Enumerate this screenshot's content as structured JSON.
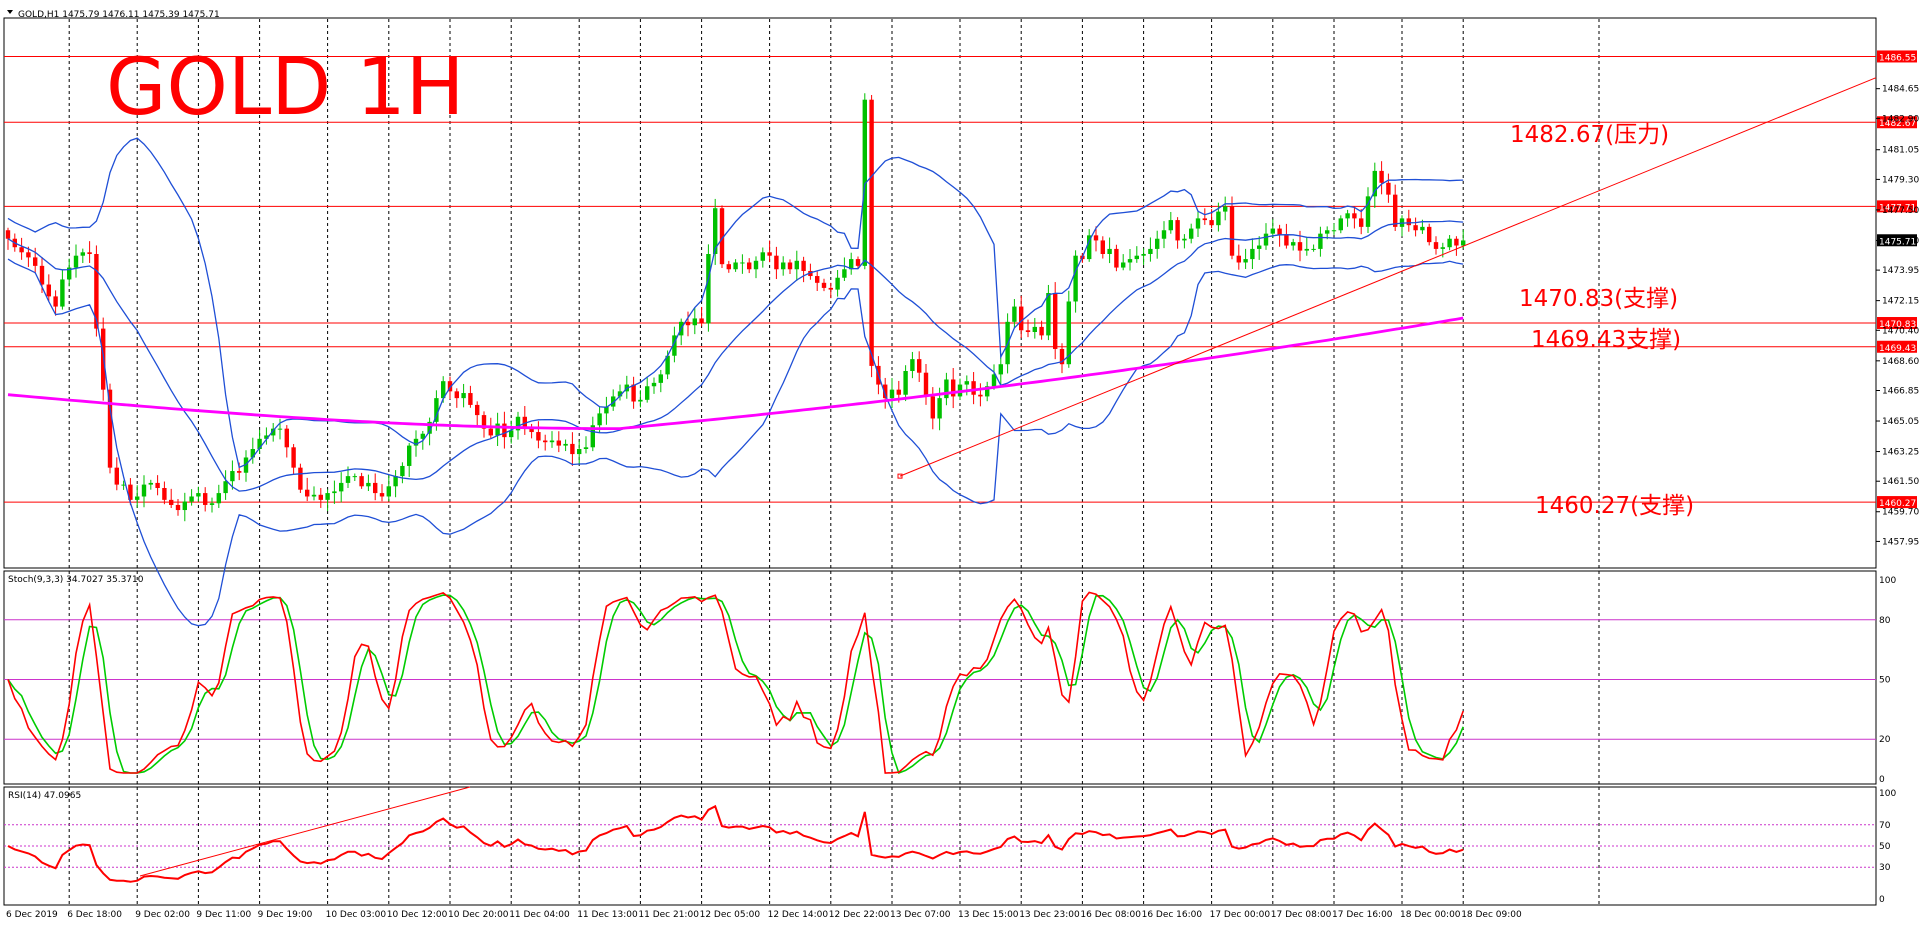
{
  "header": {
    "symbol_line": "GOLD,H1  1475.79 1476.11 1475.39 1475.71",
    "stoch_line": "Stoch(9,3,3) 34.7027 35.3710",
    "rsi_line": "RSI(14) 47.0965"
  },
  "title": "GOLD 1H",
  "annotations": {
    "resistance": "1482.67(压力)",
    "support1": "1470.83(支撑)",
    "support2": "1469.43支撑)",
    "support3": "1460.27(支撑)"
  },
  "price_ticks": [
    "1484.65",
    "1482.90",
    "1481.05",
    "1479.30",
    "1477.50",
    "1475.70",
    "1473.95",
    "1472.15",
    "1470.40",
    "1468.60",
    "1466.85",
    "1465.05",
    "1463.25",
    "1461.50",
    "1459.70",
    "1457.95"
  ],
  "level_labels": [
    "1486.55",
    "1482.67",
    "1477.71",
    "1470.83",
    "1469.43",
    "1460.27"
  ],
  "current_price": "1475.71",
  "stoch_ticks": [
    "100",
    "80",
    "50",
    "20",
    "0"
  ],
  "rsi_ticks": [
    "100",
    "70",
    "50",
    "30",
    "0"
  ],
  "time_labels": [
    "6 Dec 2019",
    "6 Dec 18:00",
    "9 Dec 02:00",
    "9 Dec 11:00",
    "9 Dec 19:00",
    "10 Dec 03:00",
    "10 Dec 12:00",
    "10 Dec 20:00",
    "11 Dec 04:00",
    "11 Dec 13:00",
    "11 Dec 21:00",
    "12 Dec 05:00",
    "12 Dec 14:00",
    "12 Dec 22:00",
    "13 Dec 07:00",
    "13 Dec 15:00",
    "13 Dec 23:00",
    "16 Dec 08:00",
    "16 Dec 16:00",
    "17 Dec 00:00",
    "17 Dec 08:00",
    "17 Dec 16:00",
    "18 Dec 00:00",
    "18 Dec 09:00"
  ],
  "colors": {
    "bull": "#00c000",
    "bear": "#ff0000",
    "bollinger": "#1f4fd6",
    "ma": "#ff00ff",
    "level": "#ff0000",
    "stoch_main": "#ff0000",
    "stoch_signal": "#00cc00",
    "rsi": "#ff0000",
    "title": "#ff0000"
  },
  "chart_data": {
    "type": "candlestick",
    "symbol": "GOLD",
    "timeframe": "H1",
    "ylim": [
      1456.5,
      1488.7
    ],
    "horizontal_levels": [
      1486.55,
      1482.67,
      1477.71,
      1470.83,
      1469.43,
      1460.27
    ],
    "trendlines": [
      {
        "from": [
          47,
          1461.8
        ],
        "to": [
          84,
          1484.3
        ]
      }
    ],
    "closes": [
      1475.8,
      1475.3,
      1475.0,
      1474.7,
      1474.2,
      1473.1,
      1472.4,
      1471.8,
      1473.4,
      1474.1,
      1474.8,
      1475.0,
      1474.9,
      1470.5,
      1466.9,
      1462.3,
      1461.3,
      1461.3,
      1460.4,
      1460.6,
      1461.3,
      1461.4,
      1461.1,
      1460.4,
      1460.1,
      1459.8,
      1460.3,
      1460.6,
      1460.8,
      1460.1,
      1460.2,
      1460.8,
      1461.5,
      1462.1,
      1462.0,
      1462.9,
      1463.4,
      1464.0,
      1464.2,
      1464.6,
      1464.6,
      1463.5,
      1462.3,
      1461.0,
      1460.6,
      1460.7,
      1460.4,
      1460.8,
      1460.9,
      1461.4,
      1461.8,
      1461.8,
      1461.2,
      1461.4,
      1460.8,
      1460.6,
      1461.2,
      1461.8,
      1462.4,
      1463.6,
      1464.0,
      1464.3,
      1465.0,
      1466.4,
      1467.4,
      1466.8,
      1466.4,
      1466.7,
      1466.0,
      1465.4,
      1464.6,
      1464.2,
      1464.9,
      1464.1,
      1464.5,
      1465.3,
      1464.6,
      1464.4,
      1463.9,
      1463.8,
      1463.9,
      1463.6,
      1463.7,
      1463.1,
      1463.4,
      1463.5,
      1464.8,
      1465.5,
      1465.9,
      1466.5,
      1466.8,
      1467.2,
      1466.2,
      1466.3,
      1467.1,
      1467.3,
      1467.8,
      1468.9,
      1470.1,
      1470.9,
      1470.7,
      1471.1,
      1470.8,
      1474.9,
      1477.6,
      1474.3,
      1474.0,
      1474.4,
      1474.4,
      1474.0,
      1474.5,
      1475.0,
      1474.8,
      1474.0,
      1474.4,
      1474.0,
      1474.5,
      1473.9,
      1473.6,
      1473.2,
      1472.9,
      1472.8,
      1473.5,
      1474.0,
      1474.6,
      1474.2,
      1484.0,
      1468.3,
      1467.2,
      1466.4,
      1466.9,
      1466.6,
      1468.0,
      1468.7,
      1467.9,
      1466.5,
      1465.2,
      1466.4,
      1467.5,
      1466.5,
      1467.2,
      1467.4,
      1466.6,
      1466.5,
      1467.1,
      1467.8,
      1468.4,
      1470.9,
      1471.8,
      1470.4,
      1470.3,
      1470.6,
      1470.1,
      1472.6,
      1469.3,
      1468.4,
      1472.1,
      1474.8,
      1474.6,
      1476.0,
      1475.7,
      1474.9,
      1475.2,
      1474.1,
      1474.4,
      1474.6,
      1474.8,
      1474.9,
      1475.2,
      1475.8,
      1476.3,
      1476.9,
      1475.7,
      1475.8,
      1476.4,
      1477.0,
      1476.9,
      1476.6,
      1477.4,
      1477.7,
      1474.8,
      1474.4,
      1474.6,
      1475.2,
      1475.4,
      1476.1,
      1476.4,
      1476.0,
      1475.4,
      1475.6,
      1475.1,
      1475.2,
      1475.2,
      1476.1,
      1476.3,
      1476.3,
      1477.0,
      1477.3,
      1477.0,
      1476.5,
      1478.3,
      1479.8,
      1479.1,
      1478.4,
      1476.5,
      1477.0,
      1476.6,
      1476.3,
      1476.5,
      1475.6,
      1475.2,
      1475.3,
      1475.8,
      1475.4,
      1475.7
    ]
  }
}
